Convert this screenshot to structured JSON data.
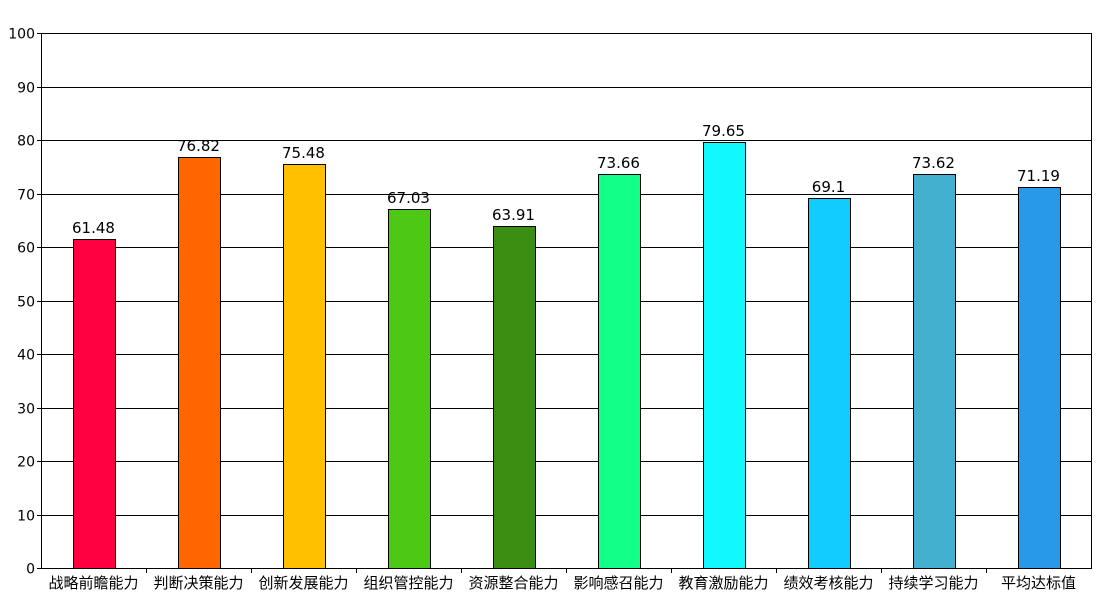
{
  "chart_data": {
    "type": "bar",
    "title": "",
    "xlabel": "",
    "ylabel": "",
    "ylim": [
      0,
      100
    ],
    "yticks": [
      0,
      10,
      20,
      30,
      40,
      50,
      60,
      70,
      80,
      90,
      100
    ],
    "grid": true,
    "categories": [
      "战略前瞻能力",
      "判断决策能力",
      "创新发展能力",
      "组织管控能力",
      "资源整合能力",
      "影响感召能力",
      "教育激励能力",
      "绩效考核能力",
      "持续学习能力",
      "平均达标值"
    ],
    "values": [
      61.48,
      76.82,
      75.48,
      67.03,
      63.91,
      73.66,
      79.65,
      69.1,
      73.62,
      71.19
    ],
    "value_labels": [
      "61.48",
      "76.82",
      "75.48",
      "67.03",
      "63.91",
      "73.66",
      "79.65",
      "69.1",
      "73.62",
      "71.19"
    ],
    "colors": [
      "#ff0040",
      "#ff6600",
      "#ffc000",
      "#4dc814",
      "#3a8e12",
      "#12ff88",
      "#12f8ff",
      "#12ccff",
      "#44b0d0",
      "#2898e8"
    ]
  }
}
